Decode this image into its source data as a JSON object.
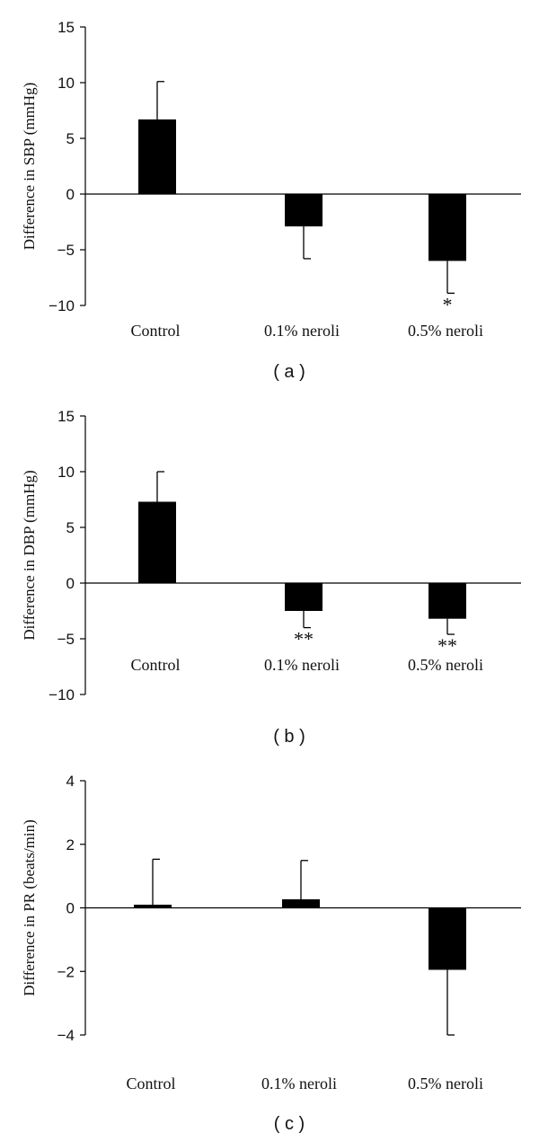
{
  "chart_data": [
    {
      "type": "bar",
      "panel_label": "( a )",
      "ylabel": "Difference in SBP (mmHg)",
      "categories": [
        "Control",
        "0.1% neroli",
        "0.5% neroli"
      ],
      "values": [
        6.7,
        -2.9,
        -6.0
      ],
      "error": [
        3.4,
        2.9,
        2.9
      ],
      "error_direction": [
        "up",
        "down",
        "down"
      ],
      "significance": [
        "",
        "",
        "*"
      ],
      "ylim": [
        -10,
        15
      ],
      "yticks": [
        15,
        10,
        5,
        0,
        -5,
        -10
      ]
    },
    {
      "type": "bar",
      "panel_label": "( b )",
      "ylabel": "Difference in DBP (mmHg)",
      "categories": [
        "Control",
        "0.1% neroli",
        "0.5% neroli"
      ],
      "values": [
        7.3,
        -2.5,
        -3.2
      ],
      "error": [
        2.7,
        1.5,
        1.4
      ],
      "error_direction": [
        "up",
        "down",
        "down"
      ],
      "significance": [
        "",
        "**",
        "**"
      ],
      "ylim": [
        -10,
        15
      ],
      "yticks": [
        15,
        10,
        5,
        0,
        -5,
        -10
      ]
    },
    {
      "type": "bar",
      "panel_label": "( c )",
      "ylabel": "Difference in PR (beats/min)",
      "categories": [
        "Control",
        "0.1% neroli",
        "0.5% neroli"
      ],
      "values": [
        0.1,
        0.27,
        -1.95
      ],
      "error": [
        1.43,
        1.22,
        2.05
      ],
      "error_direction": [
        "up",
        "up",
        "down"
      ],
      "significance": [
        "",
        "",
        ""
      ],
      "ylim": [
        -4,
        4
      ],
      "yticks": [
        4,
        2,
        0,
        -2,
        -4
      ]
    }
  ]
}
